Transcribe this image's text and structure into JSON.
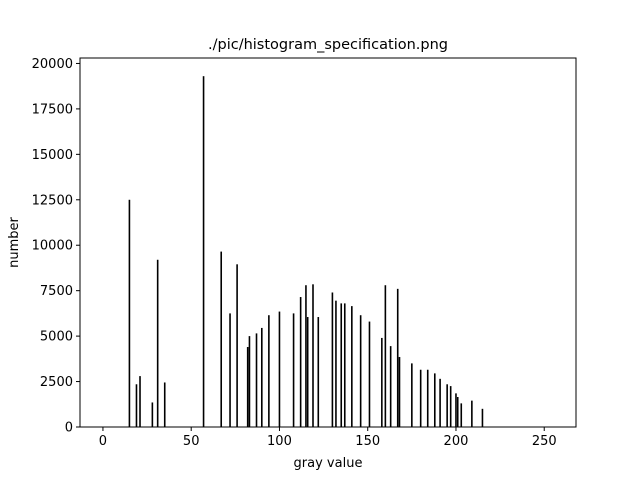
{
  "chart_data": {
    "type": "bar",
    "title": "./pic/histogram_specification.png",
    "xlabel": "gray value",
    "ylabel": "number",
    "xlim": [
      -13,
      268
    ],
    "ylim": [
      0,
      20300
    ],
    "grid": false,
    "bar_color": "#000000",
    "xticks": [
      0,
      50,
      100,
      150,
      200,
      250
    ],
    "xtick_labels": [
      "0",
      "50",
      "100",
      "150",
      "200",
      "250"
    ],
    "yticks": [
      0,
      2500,
      5000,
      7500,
      10000,
      12500,
      15000,
      17500,
      20000
    ],
    "ytick_labels": [
      "0",
      "2500",
      "5000",
      "7500",
      "10000",
      "12500",
      "15000",
      "17500",
      "20000"
    ],
    "x": [
      15,
      19,
      21,
      28,
      31,
      35,
      57,
      67,
      72,
      76,
      82,
      83,
      87,
      90,
      94,
      100,
      108,
      112,
      115,
      116,
      119,
      122,
      130,
      132,
      135,
      137,
      141,
      146,
      151,
      158,
      160,
      163,
      167,
      168,
      175,
      180,
      184,
      188,
      191,
      195,
      197,
      200,
      201,
      203,
      209,
      215
    ],
    "values": [
      12500,
      2350,
      2800,
      1350,
      9200,
      2450,
      19300,
      9650,
      6250,
      8950,
      4400,
      5000,
      5150,
      5450,
      6150,
      6350,
      6250,
      7150,
      7800,
      6050,
      7850,
      6050,
      7400,
      6950,
      6800,
      6800,
      6650,
      6150,
      5800,
      4900,
      7800,
      4450,
      7600,
      3850,
      3500,
      3150,
      3150,
      2950,
      2650,
      2350,
      2250,
      1850,
      1650,
      1300,
      1450,
      1000
    ]
  }
}
